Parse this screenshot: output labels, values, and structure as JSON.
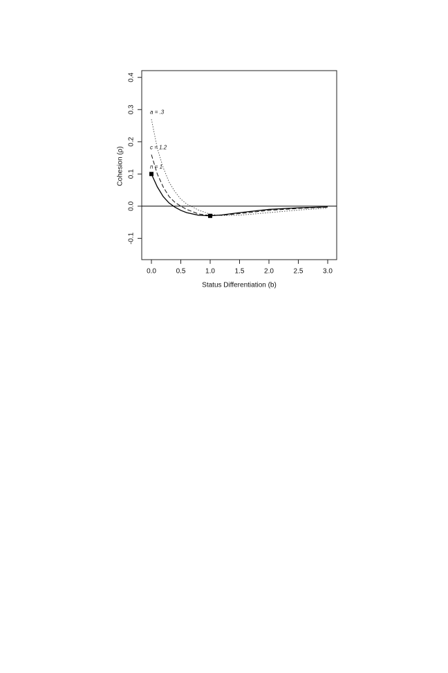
{
  "chart_data": {
    "type": "line",
    "x_label": "Status Differentiation (b)",
    "y_label": "Cohesion (ρ)",
    "x": [
      0,
      0.1,
      0.2,
      0.3,
      0.4,
      0.5,
      0.6,
      0.8,
      1.0,
      1.2,
      1.5,
      2.0,
      2.5,
      3.0
    ],
    "series": [
      {
        "name": "a = .3",
        "color": "#555555",
        "linestyle": "dotted",
        "values": [
          0.27,
          0.18,
          0.12,
          0.075,
          0.045,
          0.022,
          0.007,
          -0.012,
          -0.025,
          -0.029,
          -0.028,
          -0.02,
          -0.012,
          -0.006
        ]
      },
      {
        "name": "c = 1.2",
        "color": "#111111",
        "linestyle": "dashed",
        "values": [
          0.16,
          0.1,
          0.06,
          0.03,
          0.012,
          0,
          -0.01,
          -0.024,
          -0.029,
          -0.028,
          -0.023,
          -0.013,
          -0.007,
          -0.003
        ]
      },
      {
        "name": "n = 1",
        "color": "#000000",
        "linestyle": "solid",
        "values": [
          0.1,
          0.06,
          0.03,
          0.01,
          -0.003,
          -0.013,
          -0.02,
          -0.028,
          -0.03,
          -0.027,
          -0.02,
          -0.01,
          -0.005,
          -0.002
        ]
      }
    ],
    "points": {
      "x": [
        0,
        1
      ],
      "values": [
        0.1,
        -0.03
      ]
    },
    "hline": 0,
    "xlim": [
      -0.165,
      3.153
    ],
    "ylim": [
      -0.166,
      0.421
    ],
    "xticks": [
      {
        "value": 0,
        "label": "0.0"
      },
      0.5,
      {
        "value": 1,
        "label": "1.0"
      },
      1.5,
      {
        "value": 2,
        "label": "2.0"
      },
      2.5,
      {
        "value": 3,
        "label": "3.0"
      }
    ],
    "yticks": [
      -0.1,
      {
        "value": 0,
        "label": "0.0"
      },
      0.1,
      0.2,
      0.3,
      0.4
    ]
  }
}
